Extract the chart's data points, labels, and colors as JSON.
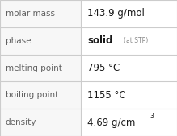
{
  "rows": [
    {
      "label": "molar mass",
      "value": "143.9 g/mol",
      "superscript": null,
      "small_suffix": null
    },
    {
      "label": "phase",
      "value": "solid",
      "superscript": null,
      "small_suffix": "(at STP)"
    },
    {
      "label": "melting point",
      "value": "795 °C",
      "superscript": null,
      "small_suffix": null
    },
    {
      "label": "boiling point",
      "value": "1155 °C",
      "superscript": null,
      "small_suffix": null
    },
    {
      "label": "density",
      "value": "4.69 g/cm",
      "superscript": "3",
      "small_suffix": null
    }
  ],
  "col_split": 0.455,
  "bg_color": "#f0f0f0",
  "cell_bg": "#f7f7f7",
  "border_color": "#cccccc",
  "label_color": "#606060",
  "value_color": "#1a1a1a",
  "small_color": "#888888",
  "label_fontsize": 7.5,
  "value_fontsize": 8.5,
  "small_fontsize": 5.5,
  "super_fontsize": 5.5
}
